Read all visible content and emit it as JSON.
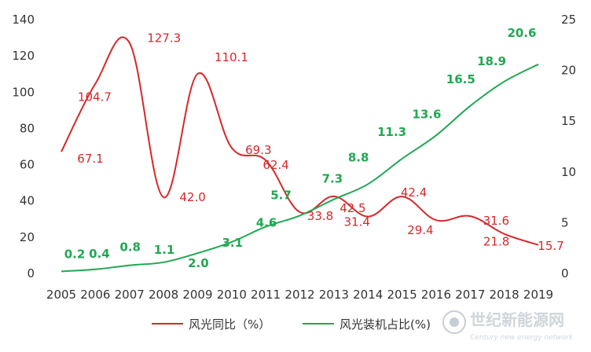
{
  "chart_data": {
    "type": "line",
    "title": "",
    "x": [
      "2005",
      "2006",
      "2007",
      "2008",
      "2009",
      "2010",
      "2011",
      "2012",
      "2013",
      "2014",
      "2015",
      "2016",
      "2017",
      "2018",
      "2019"
    ],
    "y_left": {
      "ylim": [
        0,
        140
      ],
      "ticks": [
        "0",
        "20",
        "40",
        "60",
        "80",
        "100",
        "120",
        "140"
      ]
    },
    "y_right": {
      "ylim": [
        0,
        25
      ],
      "ticks": [
        "0",
        "5",
        "10",
        "15",
        "20",
        "25"
      ]
    },
    "grid": false,
    "legend_position": "bottom",
    "series": [
      {
        "name": "风光同比（%）",
        "axis": "left",
        "color": "#d6282a",
        "values": [
          67.1,
          104.7,
          127.3,
          42.0,
          110.1,
          69.3,
          62.4,
          33.8,
          42.5,
          31.4,
          42.4,
          29.4,
          31.6,
          21.8,
          15.7
        ],
        "labels": [
          "67.1",
          "104.7",
          "127.3",
          "42.0",
          "110.1",
          "69.3",
          "62.4",
          "33.8",
          "42.5",
          "31.4",
          "42.4",
          "29.4",
          "31.6",
          "21.8",
          "15.7"
        ]
      },
      {
        "name": "风光装机占比(%)",
        "axis": "right",
        "color": "#1fa852",
        "values": [
          0.2,
          0.4,
          0.8,
          1.1,
          2.0,
          3.1,
          4.6,
          5.7,
          7.3,
          8.8,
          11.3,
          13.6,
          16.5,
          18.9,
          20.6
        ],
        "labels": [
          "0.2",
          "0.4",
          "0.8",
          "1.1",
          "2.0",
          "3.1",
          "4.6",
          "5.7",
          "7.3",
          "8.8",
          "11.3",
          "13.6",
          "16.5",
          "18.9",
          "20.6"
        ]
      }
    ]
  },
  "watermark": {
    "title": "世纪新能源网",
    "subtitle": "Century new energy network"
  }
}
